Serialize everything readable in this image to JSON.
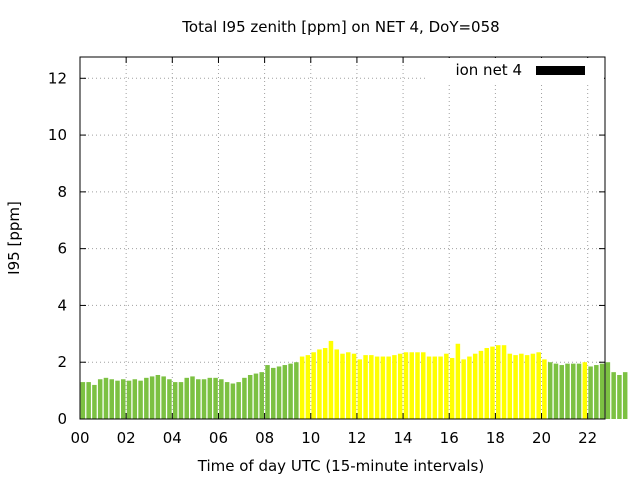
{
  "chart_data": {
    "type": "bar",
    "title": "Total I95 zenith [ppm] on NET 4, DoY=058",
    "xlabel": "Time of day UTC (15-minute intervals)",
    "ylabel": "I95 [ppm]",
    "xlim": [
      0,
      22.75
    ],
    "ylim": [
      0,
      12.75
    ],
    "x_ticks": [
      "00",
      "02",
      "04",
      "06",
      "08",
      "10",
      "12",
      "14",
      "16",
      "18",
      "20",
      "22"
    ],
    "x_tick_values": [
      0,
      2,
      4,
      6,
      8,
      10,
      12,
      14,
      16,
      18,
      20,
      22
    ],
    "y_ticks": [
      0,
      2,
      4,
      6,
      8,
      10,
      12
    ],
    "grid": true,
    "legend": {
      "label": "ion net 4",
      "color": "#000000",
      "position": "top-right"
    },
    "interval_hours": 0.25,
    "colors": {
      "g": "#7cc142",
      "y": "#ffff00"
    },
    "series": [
      {
        "name": "ion net 4",
        "x_start": 0,
        "values": [
          1.3,
          1.3,
          1.2,
          1.4,
          1.45,
          1.4,
          1.35,
          1.4,
          1.35,
          1.4,
          1.35,
          1.45,
          1.5,
          1.55,
          1.5,
          1.4,
          1.3,
          1.3,
          1.45,
          1.5,
          1.4,
          1.4,
          1.45,
          1.45,
          1.4,
          1.3,
          1.25,
          1.3,
          1.45,
          1.55,
          1.6,
          1.65,
          1.9,
          1.8,
          1.85,
          1.9,
          1.95,
          2.0,
          2.2,
          2.25,
          2.35,
          2.45,
          2.5,
          2.75,
          2.45,
          2.3,
          2.35,
          2.3,
          2.1,
          2.25,
          2.25,
          2.2,
          2.2,
          2.2,
          2.25,
          2.3,
          2.35,
          2.35,
          2.35,
          2.35,
          2.2,
          2.2,
          2.2,
          2.3,
          2.15,
          2.65,
          2.1,
          2.2,
          2.3,
          2.4,
          2.5,
          2.55,
          2.6,
          2.6,
          2.3,
          2.25,
          2.3,
          2.25,
          2.3,
          2.35,
          2.1,
          2.0,
          1.95,
          1.9,
          1.95,
          1.95,
          1.95,
          2.0,
          1.85,
          1.9,
          1.95,
          2.0,
          1.65,
          1.55,
          1.65
        ],
        "colors": [
          "g",
          "g",
          "g",
          "g",
          "g",
          "g",
          "g",
          "g",
          "g",
          "g",
          "g",
          "g",
          "g",
          "g",
          "g",
          "g",
          "g",
          "g",
          "g",
          "g",
          "g",
          "g",
          "g",
          "g",
          "g",
          "g",
          "g",
          "g",
          "g",
          "g",
          "g",
          "g",
          "g",
          "g",
          "g",
          "g",
          "g",
          "g",
          "y",
          "y",
          "y",
          "y",
          "y",
          "y",
          "y",
          "y",
          "y",
          "y",
          "y",
          "y",
          "y",
          "y",
          "y",
          "y",
          "y",
          "y",
          "y",
          "y",
          "y",
          "y",
          "y",
          "y",
          "y",
          "y",
          "y",
          "y",
          "y",
          "y",
          "y",
          "y",
          "y",
          "y",
          "y",
          "y",
          "y",
          "y",
          "y",
          "y",
          "y",
          "y",
          "y",
          "g",
          "g",
          "g",
          "g",
          "g",
          "g",
          "y",
          "g",
          "g",
          "g",
          "g",
          "g",
          "g",
          "g"
        ]
      }
    ]
  }
}
